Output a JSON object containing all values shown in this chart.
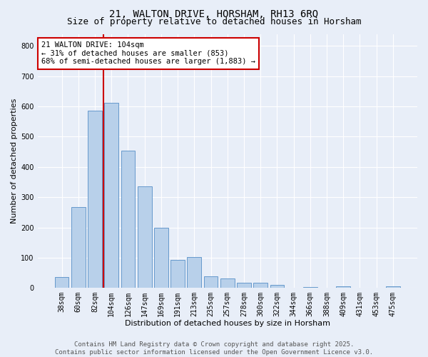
{
  "title1": "21, WALTON DRIVE, HORSHAM, RH13 6RQ",
  "title2": "Size of property relative to detached houses in Horsham",
  "xlabel": "Distribution of detached houses by size in Horsham",
  "ylabel": "Number of detached properties",
  "categories": [
    "38sqm",
    "60sqm",
    "82sqm",
    "104sqm",
    "126sqm",
    "147sqm",
    "169sqm",
    "191sqm",
    "213sqm",
    "235sqm",
    "257sqm",
    "278sqm",
    "300sqm",
    "322sqm",
    "344sqm",
    "366sqm",
    "388sqm",
    "409sqm",
    "431sqm",
    "453sqm",
    "475sqm"
  ],
  "values": [
    37,
    267,
    585,
    612,
    455,
    335,
    200,
    93,
    103,
    38,
    32,
    17,
    17,
    10,
    0,
    4,
    0,
    5,
    0,
    0,
    6
  ],
  "bar_color": "#b8d0ea",
  "bar_edge_color": "#6699cc",
  "vline_color": "#cc0000",
  "annotation_text": "21 WALTON DRIVE: 104sqm\n← 31% of detached houses are smaller (853)\n68% of semi-detached houses are larger (1,883) →",
  "annotation_box_color": "#ffffff",
  "annotation_box_edge": "#cc0000",
  "ylim": [
    0,
    840
  ],
  "yticks": [
    0,
    100,
    200,
    300,
    400,
    500,
    600,
    700,
    800
  ],
  "bg_color": "#e8eef8",
  "footer_text": "Contains HM Land Registry data © Crown copyright and database right 2025.\nContains public sector information licensed under the Open Government Licence v3.0.",
  "title_fontsize": 10,
  "subtitle_fontsize": 9,
  "axis_label_fontsize": 8,
  "tick_fontsize": 7,
  "annotation_fontsize": 7.5,
  "footer_fontsize": 6.5
}
